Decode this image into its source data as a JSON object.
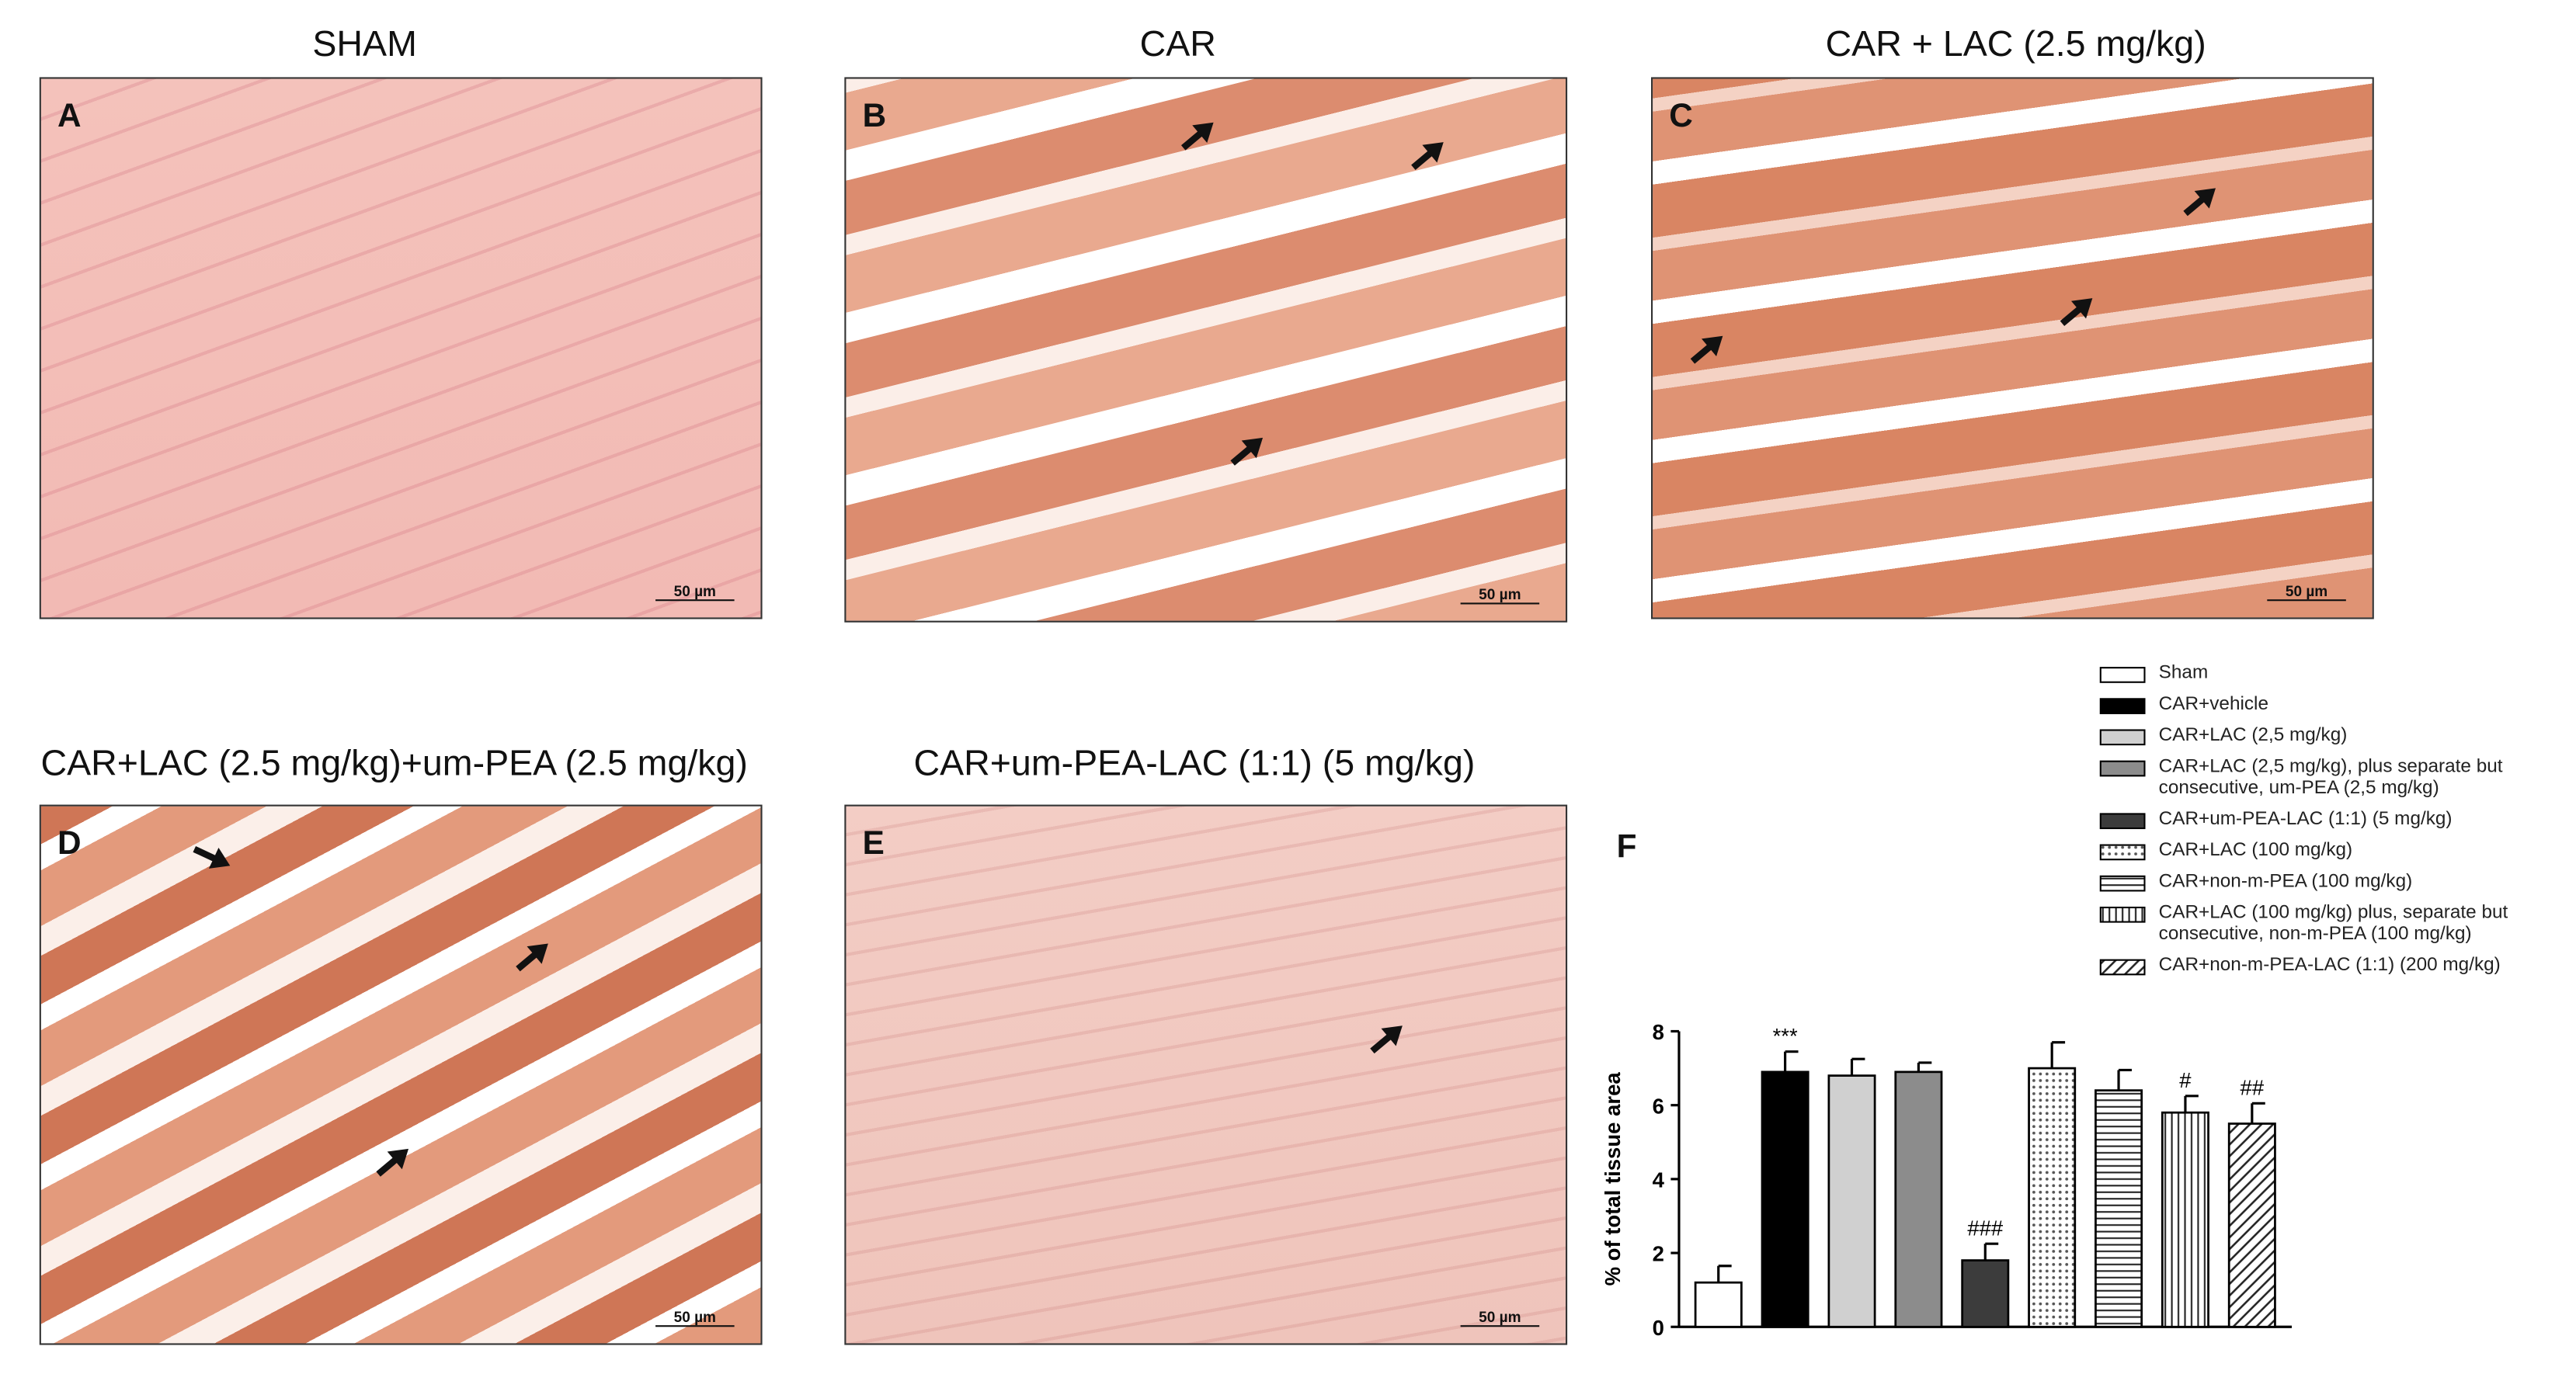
{
  "panels": [
    {
      "letter": "A",
      "title": "SHAM",
      "scale_label": "50 µm"
    },
    {
      "letter": "B",
      "title": "CAR",
      "scale_label": "50 µm"
    },
    {
      "letter": "C",
      "title": "CAR + LAC (2.5 mg/kg)",
      "scale_label": "50 µm"
    },
    {
      "letter": "D",
      "title": "CAR+LAC (2.5 mg/kg)+um-PEA (2.5 mg/kg)",
      "scale_label": "50 µm"
    },
    {
      "letter": "E",
      "title": "CAR+um-PEA-LAC (1:1) (5 mg/kg)",
      "scale_label": "50 µm"
    }
  ],
  "chart_data": {
    "type": "bar",
    "letter": "F",
    "ylabel": "% of total tissue area",
    "categories": [
      "Sham",
      "CAR+vehicle",
      "CAR+LAC (2,5 mg/kg)",
      "CAR+LAC (2,5 mg/kg), plus separate but consecutive, um-PEA (2,5 mg/kg)",
      "CAR+um-PEA-LAC (1:1) (5 mg/kg)",
      "CAR+LAC (100 mg/kg)",
      "CAR+non-m-PEA (100 mg/kg)",
      "CAR+LAC (100 mg/kg) plus, separate but consecutive, non-m-PEA (100 mg/kg)",
      "CAR+non-m-PEA-LAC (1:1) (200 mg/kg)"
    ],
    "values": [
      1.2,
      6.9,
      6.8,
      6.9,
      1.8,
      7.0,
      6.4,
      5.8,
      5.5
    ],
    "errors": [
      0.45,
      0.55,
      0.45,
      0.25,
      0.45,
      0.7,
      0.55,
      0.45,
      0.55
    ],
    "annotations": [
      null,
      "***",
      null,
      null,
      "###",
      null,
      null,
      "#",
      "##"
    ],
    "colors": [
      "#ffffff",
      "#000000",
      "#d0d0d0",
      "#8c8c8c",
      "#3c3c3c",
      "#ffffff",
      "#ffffff",
      "#ffffff",
      "#ffffff"
    ],
    "patterns": [
      "solid",
      "solid",
      "solid",
      "solid",
      "solid",
      "dots",
      "horizontal",
      "vertical",
      "diagonal"
    ],
    "ylim": [
      0,
      8
    ],
    "yticks": [
      0,
      2,
      4,
      6,
      8
    ]
  }
}
